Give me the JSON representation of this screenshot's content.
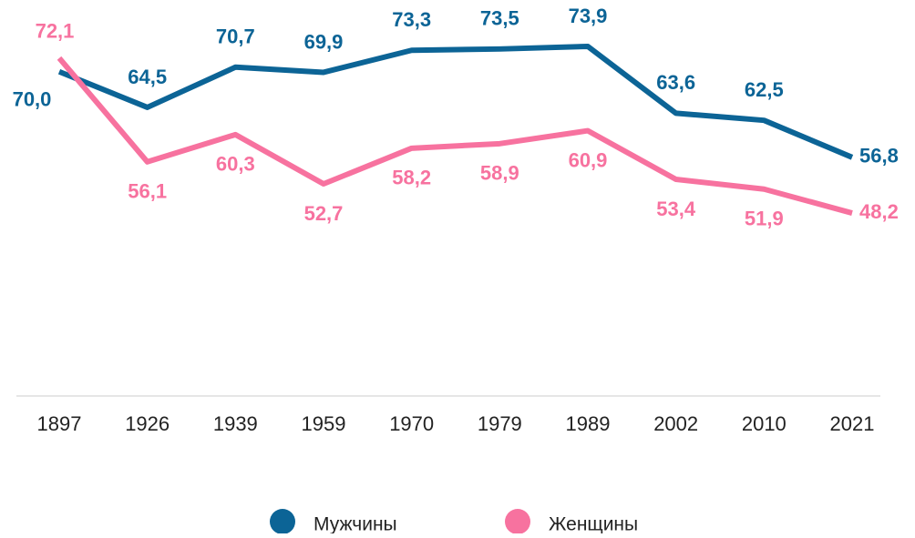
{
  "chart_data": {
    "type": "line",
    "categories": [
      "1897",
      "1926",
      "1939",
      "1959",
      "1970",
      "1979",
      "1989",
      "2002",
      "2010",
      "2021"
    ],
    "series": [
      {
        "name": "Мужчины",
        "color": "#0c6496",
        "values": [
          70.0,
          64.5,
          70.7,
          69.9,
          73.3,
          73.5,
          73.9,
          63.6,
          62.5,
          56.8
        ],
        "value_labels": [
          "70,0",
          "64,5",
          "70,7",
          "69,9",
          "73,3",
          "73,5",
          "73,9",
          "63,6",
          "62,5",
          "56,8"
        ]
      },
      {
        "name": "Женщины",
        "color": "#f7729f",
        "values": [
          72.1,
          56.1,
          60.3,
          52.7,
          58.2,
          58.9,
          60.9,
          53.4,
          51.9,
          48.2
        ],
        "value_labels": [
          "72,1",
          "56,1",
          "60,3",
          "52,7",
          "58,2",
          "58,9",
          "60,9",
          "53,4",
          "51,9",
          "48,2"
        ]
      }
    ],
    "ylim": [
      20,
      76
    ]
  }
}
